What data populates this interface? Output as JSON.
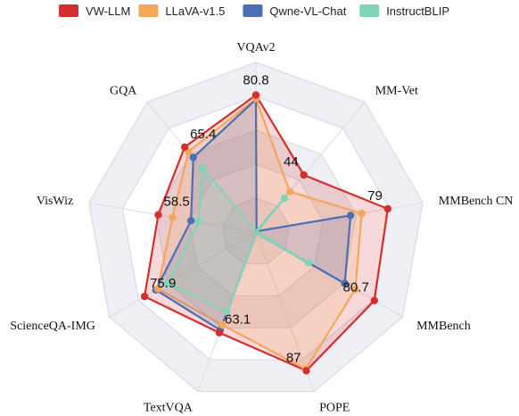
{
  "chart_data": {
    "type": "radar",
    "axes": [
      "VQAv2",
      "MM-Vet",
      "MMBench CN",
      "MMBench",
      "POPE",
      "TextVQA",
      "ScienceQA-IMG",
      "VisWiz",
      "GQA"
    ],
    "series": [
      {
        "name": "VW-LLM",
        "color": "#d32f2f",
        "values": [
          80.8,
          44,
          79,
          80.7,
          87,
          63.1,
          75.9,
          58.5,
          65.4
        ]
      },
      {
        "name": "LLaVA-v1.5",
        "color": "#f5a65b",
        "values": [
          78.5,
          31.1,
          63.4,
          67.7,
          85.9,
          58.2,
          66.8,
          50.0,
          62.0
        ]
      },
      {
        "name": "Qwne-VL-Chat",
        "color": "#4a6fb5",
        "values": [
          78.2,
          0.6,
          56.7,
          60.6,
          0.6,
          61.5,
          68.2,
          38.9,
          57.5
        ]
      },
      {
        "name": "InstructBLIP",
        "color": "#82d4b8",
        "values": [
          0.6,
          26.2,
          0.6,
          36.0,
          0.6,
          50.1,
          60.5,
          34.5,
          49.2
        ]
      }
    ],
    "value_labels": [
      "80.8",
      "44",
      "79",
      "80.7",
      "87",
      "63.1",
      "75.9",
      "58.5",
      "65.4"
    ],
    "legend_position": "top",
    "grid": true
  }
}
